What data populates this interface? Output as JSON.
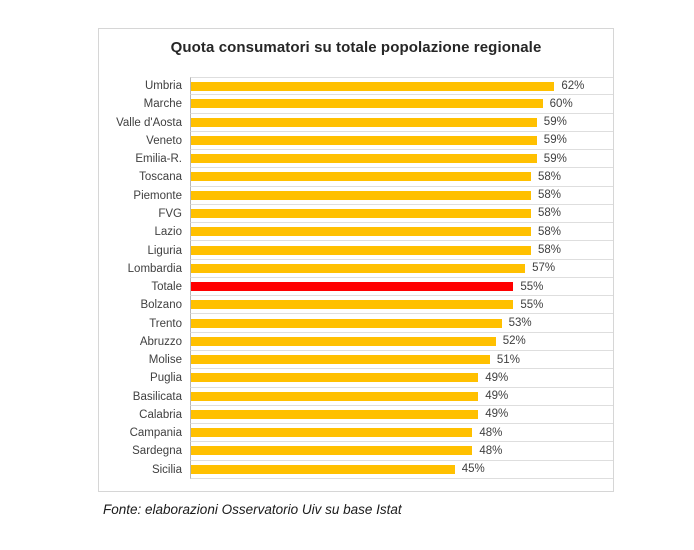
{
  "chart_data": {
    "type": "bar",
    "orientation": "horizontal",
    "title": "Quota consumatori su totale popolazione regionale",
    "categories": [
      "Umbria",
      "Marche",
      "Valle d'Aosta",
      "Veneto",
      "Emilia-R.",
      "Toscana",
      "Piemonte",
      "FVG",
      "Lazio",
      "Liguria",
      "Lombardia",
      "Totale",
      "Bolzano",
      "Trento",
      "Abruzzo",
      "Molise",
      "Puglia",
      "Basilicata",
      "Calabria",
      "Campania",
      "Sardegna",
      "Sicilia"
    ],
    "values": [
      62,
      60,
      59,
      59,
      59,
      58,
      58,
      58,
      58,
      58,
      57,
      55,
      55,
      53,
      52,
      51,
      49,
      49,
      49,
      48,
      48,
      45
    ],
    "value_labels": [
      "62%",
      "60%",
      "59%",
      "59%",
      "59%",
      "58%",
      "58%",
      "58%",
      "58%",
      "58%",
      "57%",
      "55%",
      "55%",
      "53%",
      "52%",
      "51%",
      "49%",
      "49%",
      "49%",
      "48%",
      "48%",
      "45%"
    ],
    "value_suffix": "%",
    "highlight_category": "Totale",
    "bar_color": "#FFC000",
    "highlight_color": "#FF0000",
    "xlim": [
      0,
      72
    ],
    "xlabel": "",
    "ylabel": "",
    "grid": true,
    "legend": false
  },
  "source": {
    "text": "Fonte: elaborazioni Osservatorio Uiv su base Istat"
  }
}
